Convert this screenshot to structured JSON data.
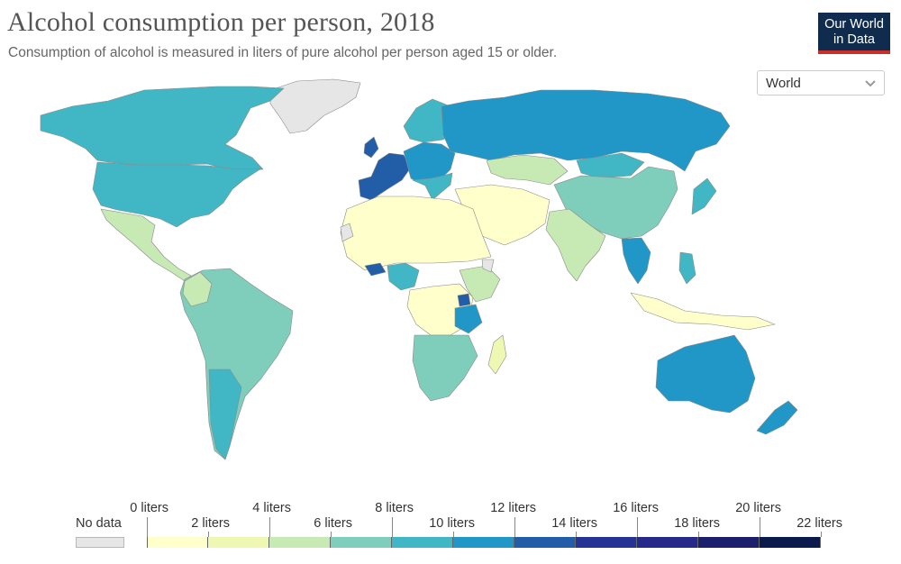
{
  "header": {
    "title": "Alcohol consumption per person, 2018",
    "subtitle": "Consumption of alcohol is measured in liters of pure alcohol per person aged 15 or older."
  },
  "logo": {
    "line1": "Our World",
    "line2": "in Data",
    "bg_color": "#0f2c4f",
    "accent_color": "#c7302b"
  },
  "region_selector": {
    "selected": "World",
    "icon": "chevron-down-icon"
  },
  "legend": {
    "no_data_label": "No data",
    "no_data_color": "#e6e6e6",
    "unit": "liters",
    "ticks_top": [
      "0 liters",
      "4 liters",
      "8 liters",
      "12 liters",
      "16 liters",
      "20 liters"
    ],
    "ticks_bottom": [
      "2 liters",
      "6 liters",
      "10 liters",
      "14 liters",
      "18 liters",
      "22 liters"
    ],
    "bin_colors": [
      "#ffffcc",
      "#eef8b3",
      "#c7e9b4",
      "#7fcdbb",
      "#41b6c4",
      "#2197c8",
      "#225ea8",
      "#253494",
      "#26288a",
      "#1c1f6b",
      "#0b1a4d"
    ]
  },
  "map_colors": {
    "ocean": "#ffffff",
    "no_data": "#e6e6e6",
    "stroke": "#8a8a8a"
  }
}
